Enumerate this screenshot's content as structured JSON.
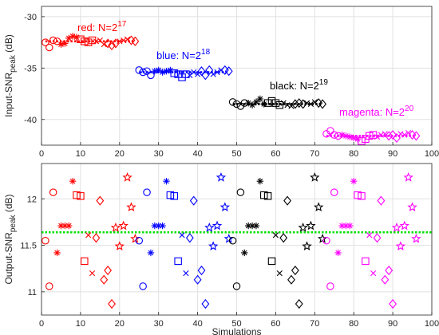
{
  "chart_data": [
    {
      "type": "scatter",
      "xlabel": "",
      "ylabel": "Input-SNR",
      "ylabel_sub": "peak",
      "ylabel_unit": " (dB)",
      "xlim": [
        0,
        100
      ],
      "ylim": [
        -42.5,
        -29
      ],
      "x_ticks": [
        0,
        10,
        20,
        30,
        40,
        50,
        60,
        70,
        80,
        90,
        100
      ],
      "y_ticks": [
        -40,
        -35,
        -30
      ],
      "grid": true,
      "series": [
        {
          "name": "red: N=2^17",
          "color": "#ff0000",
          "x": [
            1,
            2,
            3,
            4,
            5,
            6,
            7,
            8,
            9,
            10,
            11,
            12,
            13,
            14,
            15,
            16,
            17,
            18,
            19,
            20,
            21,
            22,
            23,
            24
          ],
          "y": [
            -32.5,
            -33.0,
            -32.3,
            -32.4,
            -32.7,
            -32.6,
            -32.1,
            -31.9,
            -32.0,
            -32.2,
            -32.4,
            -32.5,
            -32.3,
            -32.4,
            -32.3,
            -32.7,
            -32.6,
            -32.8,
            -32.6,
            -32.4,
            -32.3,
            -32.2,
            -32.3,
            -32.4
          ],
          "trend_y": -32.4
        },
        {
          "name": "blue: N=2^18",
          "color": "#0000ff",
          "x": [
            25,
            26,
            27,
            28,
            29,
            30,
            31,
            32,
            33,
            34,
            35,
            36,
            37,
            38,
            39,
            40,
            41,
            42,
            43,
            44,
            45,
            46,
            47,
            48
          ],
          "y": [
            -35.2,
            -35.4,
            -35.3,
            -35.7,
            -35.3,
            -35.2,
            -35.4,
            -35.3,
            -35.2,
            -35.5,
            -35.6,
            -35.9,
            -35.6,
            -35.7,
            -35.4,
            -35.6,
            -35.3,
            -35.7,
            -35.2,
            -35.6,
            -35.4,
            -35.2,
            -35.2,
            -35.3
          ],
          "trend_y": -35.4
        },
        {
          "name": "black: N=2^19",
          "color": "#000000",
          "x": [
            49,
            50,
            51,
            52,
            53,
            54,
            55,
            56,
            57,
            58,
            59,
            60,
            61,
            62,
            63,
            64,
            65,
            66,
            67,
            68,
            69,
            70,
            71,
            72
          ],
          "y": [
            -38.3,
            -38.5,
            -38.7,
            -38.4,
            -38.4,
            -38.6,
            -38.3,
            -38.0,
            -38.5,
            -38.4,
            -38.2,
            -38.4,
            -38.6,
            -38.4,
            -38.6,
            -38.7,
            -38.5,
            -38.4,
            -38.5,
            -38.4,
            -38.5,
            -38.3,
            -38.4,
            -38.5
          ],
          "trend_y": -38.5
        },
        {
          "name": "magenta: N=2^20",
          "color": "#ff00ff",
          "x": [
            73,
            74,
            75,
            76,
            77,
            78,
            79,
            80,
            81,
            82,
            83,
            84,
            85,
            86,
            87,
            88,
            89,
            90,
            91,
            92,
            93,
            94,
            95,
            96
          ],
          "y": [
            -41.4,
            -41.1,
            -41.5,
            -41.6,
            -41.5,
            -41.6,
            -41.7,
            -41.8,
            -41.9,
            -42.1,
            -41.9,
            -41.6,
            -41.5,
            -41.7,
            -41.5,
            -41.4,
            -41.6,
            -41.5,
            -41.8,
            -41.4,
            -41.5,
            -41.3,
            -41.5,
            -41.6
          ],
          "trend_y": -41.6
        }
      ],
      "annotations": [
        {
          "base": "red: N=2",
          "exp": "17",
          "color": "#ff0000",
          "x": 28,
          "y": -31.0
        },
        {
          "base": "blue: N=2",
          "exp": "18",
          "color": "#0000ff",
          "x": 43,
          "y": -34.0
        },
        {
          "base": "black: N=2",
          "exp": "19",
          "color": "#000000",
          "x": 56,
          "y": -37.0
        },
        {
          "base": "magenta: N=2",
          "exp": "20",
          "color": "#ff00ff",
          "x": 74,
          "y": -40.1
        }
      ]
    },
    {
      "type": "scatter",
      "xlabel": "Simulations",
      "ylabel": "Output-SNR",
      "ylabel_sub": "peak",
      "ylabel_unit": " (dB)",
      "xlim": [
        0,
        100
      ],
      "ylim": [
        10.75,
        12.38
      ],
      "x_ticks": [
        0,
        10,
        20,
        30,
        40,
        50,
        60,
        70,
        80,
        90,
        100
      ],
      "y_ticks": [
        11,
        11.5,
        12
      ],
      "y_tick_labels": [
        "11",
        "11.5",
        "12"
      ],
      "grid": true,
      "reference_line": {
        "y": 11.64,
        "color": "#00e000"
      },
      "marker_cycle": [
        "circle",
        "circle",
        "circle",
        "asterisk",
        "asterisk",
        "asterisk",
        "asterisk",
        "asterisk",
        "square",
        "square",
        "square",
        "x",
        "x",
        "diamond",
        "diamond",
        "diamond",
        "diamond",
        "diamond",
        "hexagram",
        "hexagram",
        "hexagram",
        "hexagram",
        "hexagram",
        "hexagram"
      ],
      "series": [
        {
          "color": "#ff0000",
          "x": [
            1,
            2,
            3,
            4,
            5,
            6,
            7,
            8,
            9,
            10,
            11,
            12,
            13,
            14,
            15,
            16,
            17,
            18,
            19,
            20,
            21,
            22,
            23,
            24
          ],
          "y": [
            11.55,
            11.06,
            12.07,
            11.42,
            11.71,
            11.71,
            11.71,
            12.19,
            12.04,
            12.03,
            11.33,
            11.61,
            11.2,
            11.58,
            11.98,
            11.13,
            11.23,
            10.87,
            11.69,
            11.49,
            11.71,
            12.23,
            11.91,
            11.57
          ]
        },
        {
          "color": "#0000ff",
          "x": [
            25,
            26,
            27,
            28,
            29,
            30,
            31,
            32,
            33,
            34,
            35,
            36,
            37,
            38,
            39,
            40,
            41,
            42,
            43,
            44,
            45,
            46,
            47,
            48
          ],
          "y": [
            11.55,
            11.06,
            12.07,
            11.42,
            11.71,
            11.71,
            11.71,
            12.19,
            12.04,
            12.03,
            11.33,
            11.61,
            11.2,
            11.58,
            11.98,
            11.13,
            11.23,
            10.87,
            11.69,
            11.49,
            11.71,
            12.23,
            11.91,
            11.57
          ]
        },
        {
          "color": "#000000",
          "x": [
            49,
            50,
            51,
            52,
            53,
            54,
            55,
            56,
            57,
            58,
            59,
            60,
            61,
            62,
            63,
            64,
            65,
            66,
            67,
            68,
            69,
            70,
            71,
            72
          ],
          "y": [
            11.55,
            11.06,
            12.07,
            11.42,
            11.71,
            11.71,
            11.71,
            12.19,
            12.04,
            12.03,
            11.33,
            11.61,
            11.2,
            11.58,
            11.98,
            11.13,
            11.23,
            10.87,
            11.69,
            11.49,
            11.71,
            12.23,
            11.91,
            11.57
          ]
        },
        {
          "color": "#ff00ff",
          "x": [
            73,
            74,
            75,
            76,
            77,
            78,
            79,
            80,
            81,
            82,
            83,
            84,
            85,
            86,
            87,
            88,
            89,
            90,
            91,
            92,
            93,
            94,
            95,
            96
          ],
          "y": [
            11.55,
            11.06,
            12.07,
            11.42,
            11.71,
            11.71,
            11.71,
            12.19,
            12.04,
            12.03,
            11.33,
            11.61,
            11.2,
            11.58,
            11.98,
            11.13,
            11.23,
            10.87,
            11.69,
            11.49,
            11.71,
            12.23,
            11.91,
            11.57
          ]
        }
      ]
    }
  ]
}
